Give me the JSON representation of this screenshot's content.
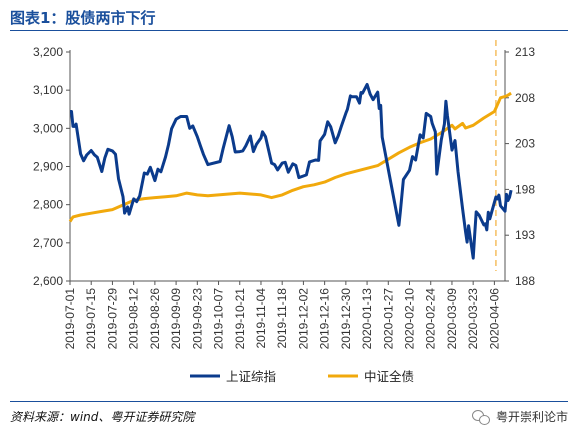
{
  "header": {
    "title": "图表1：股债两市下行"
  },
  "footer": {
    "source": "资料来源：wind、粤开证券研究院",
    "brand": "粤开崇利论市"
  },
  "colors": {
    "series1": "#0b3b8c",
    "series2": "#f1a90c",
    "marker": "#f6c36b",
    "accent": "#1a4f9c"
  },
  "chart_data": {
    "type": "line",
    "x_ticks": [
      "2019-07-01",
      "2019-07-15",
      "2019-07-29",
      "2019-08-12",
      "2019-08-26",
      "2019-09-09",
      "2019-09-23",
      "2019-10-07",
      "2019-10-21",
      "2019-11-04",
      "2019-11-18",
      "2019-12-02",
      "2019-12-16",
      "2019-12-30",
      "2020-01-13",
      "2020-01-27",
      "2020-02-10",
      "2020-02-24",
      "2020-03-09",
      "2020-03-23",
      "2020-04-06"
    ],
    "y_left": {
      "ticks": [
        2600,
        2700,
        2800,
        2900,
        3000,
        3100,
        3200
      ],
      "labels": [
        "2,600",
        "2,700",
        "2,800",
        "2,900",
        "3,000",
        "3,100",
        "3,200"
      ],
      "range": [
        2600,
        3200
      ]
    },
    "y_right": {
      "ticks": [
        188,
        193,
        198,
        203,
        208,
        213
      ],
      "labels": [
        "188",
        "193",
        "198",
        "203",
        "208",
        "213"
      ],
      "range": [
        188,
        213
      ]
    },
    "x_range": [
      "2019-07-01",
      "2020-04-13"
    ],
    "series": [
      {
        "name": "上证综指",
        "axis": "left",
        "points": [
          [
            "2019-07-01",
            3044
          ],
          [
            "2019-07-02",
            3044
          ],
          [
            "2019-07-03",
            3005
          ],
          [
            "2019-07-04",
            3005
          ],
          [
            "2019-07-05",
            3011
          ],
          [
            "2019-07-08",
            2933
          ],
          [
            "2019-07-10",
            2915
          ],
          [
            "2019-07-12",
            2930
          ],
          [
            "2019-07-15",
            2942
          ],
          [
            "2019-07-17",
            2931
          ],
          [
            "2019-07-19",
            2924
          ],
          [
            "2019-07-22",
            2887
          ],
          [
            "2019-07-24",
            2923
          ],
          [
            "2019-07-26",
            2945
          ],
          [
            "2019-07-29",
            2941
          ],
          [
            "2019-07-31",
            2932
          ],
          [
            "2019-08-02",
            2868
          ],
          [
            "2019-08-05",
            2821
          ],
          [
            "2019-08-06",
            2778
          ],
          [
            "2019-08-08",
            2794
          ],
          [
            "2019-08-09",
            2775
          ],
          [
            "2019-08-12",
            2815
          ],
          [
            "2019-08-14",
            2808
          ],
          [
            "2019-08-16",
            2823
          ],
          [
            "2019-08-19",
            2883
          ],
          [
            "2019-08-21",
            2880
          ],
          [
            "2019-08-23",
            2898
          ],
          [
            "2019-08-26",
            2863
          ],
          [
            "2019-08-28",
            2893
          ],
          [
            "2019-08-30",
            2886
          ],
          [
            "2019-09-02",
            2925
          ],
          [
            "2019-09-04",
            2957
          ],
          [
            "2019-09-06",
            2999
          ],
          [
            "2019-09-09",
            3024
          ],
          [
            "2019-09-12",
            3031
          ],
          [
            "2019-09-16",
            3031
          ],
          [
            "2019-09-18",
            3000
          ],
          [
            "2019-09-20",
            3006
          ],
          [
            "2019-09-23",
            2978
          ],
          [
            "2019-09-25",
            2955
          ],
          [
            "2019-09-27",
            2932
          ],
          [
            "2019-09-30",
            2905
          ],
          [
            "2019-10-08",
            2913
          ],
          [
            "2019-10-10",
            2947
          ],
          [
            "2019-10-14",
            3007
          ],
          [
            "2019-10-16",
            2978
          ],
          [
            "2019-10-18",
            2938
          ],
          [
            "2019-10-21",
            2939
          ],
          [
            "2019-10-23",
            2941
          ],
          [
            "2019-10-25",
            2954
          ],
          [
            "2019-10-28",
            2980
          ],
          [
            "2019-10-30",
            2939
          ],
          [
            "2019-11-01",
            2958
          ],
          [
            "2019-11-04",
            2975
          ],
          [
            "2019-11-05",
            2991
          ],
          [
            "2019-11-07",
            2978
          ],
          [
            "2019-11-11",
            2909
          ],
          [
            "2019-11-13",
            2905
          ],
          [
            "2019-11-15",
            2891
          ],
          [
            "2019-11-18",
            2909
          ],
          [
            "2019-11-20",
            2911
          ],
          [
            "2019-11-22",
            2885
          ],
          [
            "2019-11-25",
            2907
          ],
          [
            "2019-11-27",
            2903
          ],
          [
            "2019-11-29",
            2871
          ],
          [
            "2019-12-02",
            2875
          ],
          [
            "2019-12-04",
            2878
          ],
          [
            "2019-12-06",
            2912
          ],
          [
            "2019-12-10",
            2917
          ],
          [
            "2019-12-12",
            2916
          ],
          [
            "2019-12-13",
            2967
          ],
          [
            "2019-12-16",
            2984
          ],
          [
            "2019-12-18",
            3017
          ],
          [
            "2019-12-20",
            3004
          ],
          [
            "2019-12-23",
            2962
          ],
          [
            "2019-12-25",
            2981
          ],
          [
            "2019-12-27",
            3005
          ],
          [
            "2019-12-30",
            3040
          ],
          [
            "2019-12-31",
            3050
          ],
          [
            "2020-01-02",
            3085
          ],
          [
            "2020-01-03",
            3083
          ],
          [
            "2020-01-06",
            3083
          ],
          [
            "2020-01-08",
            3066
          ],
          [
            "2020-01-09",
            3094
          ],
          [
            "2020-01-10",
            3092
          ],
          [
            "2020-01-13",
            3115
          ],
          [
            "2020-01-15",
            3090
          ],
          [
            "2020-01-17",
            3075
          ],
          [
            "2020-01-20",
            3095
          ],
          [
            "2020-01-21",
            3052
          ],
          [
            "2020-01-22",
            3060
          ],
          [
            "2020-01-23",
            2977
          ],
          [
            "2020-02-03",
            2746
          ],
          [
            "2020-02-04",
            2783
          ],
          [
            "2020-02-06",
            2866
          ],
          [
            "2020-02-10",
            2890
          ],
          [
            "2020-02-12",
            2926
          ],
          [
            "2020-02-14",
            2917
          ],
          [
            "2020-02-17",
            2983
          ],
          [
            "2020-02-19",
            2975
          ],
          [
            "2020-02-21",
            3039
          ],
          [
            "2020-02-24",
            3031
          ],
          [
            "2020-02-25",
            3013
          ],
          [
            "2020-02-27",
            2991
          ],
          [
            "2020-02-28",
            2880
          ],
          [
            "2020-03-02",
            2970
          ],
          [
            "2020-03-04",
            3011
          ],
          [
            "2020-03-05",
            3071
          ],
          [
            "2020-03-06",
            3034
          ],
          [
            "2020-03-09",
            2943
          ],
          [
            "2020-03-11",
            2968
          ],
          [
            "2020-03-13",
            2887
          ],
          [
            "2020-03-16",
            2789
          ],
          [
            "2020-03-18",
            2728
          ],
          [
            "2020-03-19",
            2702
          ],
          [
            "2020-03-20",
            2745
          ],
          [
            "2020-03-23",
            2660
          ],
          [
            "2020-03-24",
            2722
          ],
          [
            "2020-03-25",
            2781
          ],
          [
            "2020-03-27",
            2772
          ],
          [
            "2020-03-30",
            2747
          ],
          [
            "2020-03-31",
            2750
          ],
          [
            "2020-04-01",
            2734
          ],
          [
            "2020-04-02",
            2780
          ],
          [
            "2020-04-03",
            2763
          ],
          [
            "2020-04-07",
            2820
          ],
          [
            "2020-04-08",
            2815
          ],
          [
            "2020-04-09",
            2825
          ],
          [
            "2020-04-10",
            2797
          ],
          [
            "2020-04-13",
            2783
          ],
          [
            "2020-04-14",
            2827
          ],
          [
            "2020-04-15",
            2811
          ],
          [
            "2020-04-16",
            2819
          ],
          [
            "2020-04-17",
            2838
          ]
        ]
      },
      {
        "name": "中证全债",
        "axis": "right",
        "points": [
          [
            "2019-07-01",
            194.5
          ],
          [
            "2019-07-03",
            195.0
          ],
          [
            "2019-07-08",
            195.2
          ],
          [
            "2019-07-15",
            195.4
          ],
          [
            "2019-07-22",
            195.6
          ],
          [
            "2019-07-29",
            195.8
          ],
          [
            "2019-08-05",
            196.3
          ],
          [
            "2019-08-12",
            196.8
          ],
          [
            "2019-08-19",
            197.0
          ],
          [
            "2019-08-26",
            197.1
          ],
          [
            "2019-09-02",
            197.2
          ],
          [
            "2019-09-09",
            197.3
          ],
          [
            "2019-09-16",
            197.6
          ],
          [
            "2019-09-23",
            197.4
          ],
          [
            "2019-09-30",
            197.3
          ],
          [
            "2019-10-14",
            197.5
          ],
          [
            "2019-10-21",
            197.6
          ],
          [
            "2019-10-28",
            197.5
          ],
          [
            "2019-11-04",
            197.4
          ],
          [
            "2019-11-11",
            197.1
          ],
          [
            "2019-11-18",
            197.4
          ],
          [
            "2019-11-25",
            197.9
          ],
          [
            "2019-12-02",
            198.3
          ],
          [
            "2019-12-09",
            198.5
          ],
          [
            "2019-12-16",
            198.8
          ],
          [
            "2019-12-23",
            199.3
          ],
          [
            "2019-12-30",
            199.7
          ],
          [
            "2020-01-06",
            200.0
          ],
          [
            "2020-01-13",
            200.3
          ],
          [
            "2020-01-20",
            200.6
          ],
          [
            "2020-02-03",
            202.0
          ],
          [
            "2020-02-10",
            202.6
          ],
          [
            "2020-02-17",
            203.1
          ],
          [
            "2020-02-24",
            203.5
          ],
          [
            "2020-03-02",
            204.2
          ],
          [
            "2020-03-09",
            205.0
          ],
          [
            "2020-03-11",
            204.6
          ],
          [
            "2020-03-16",
            205.2
          ],
          [
            "2020-03-18",
            204.7
          ],
          [
            "2020-03-23",
            205.0
          ],
          [
            "2020-03-30",
            205.8
          ],
          [
            "2020-04-06",
            206.5
          ],
          [
            "2020-04-10",
            208.0
          ],
          [
            "2020-04-14",
            208.2
          ],
          [
            "2020-04-17",
            208.5
          ]
        ]
      }
    ],
    "marker_date": "2020-04-07",
    "legend_position": "bottom",
    "grid": false
  }
}
